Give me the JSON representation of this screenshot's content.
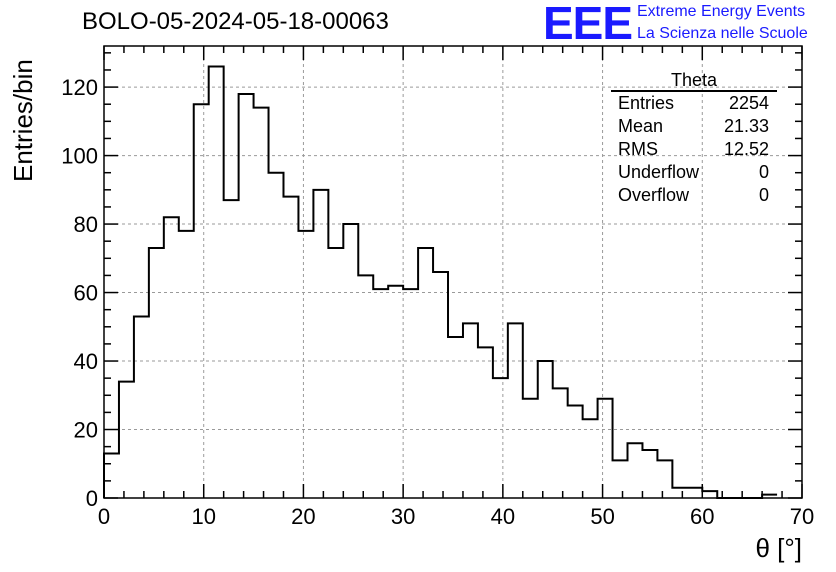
{
  "header": {
    "title": "BOLO-05-2024-05-18-00063"
  },
  "logo": {
    "mark": "EEE",
    "line1": "Extreme Energy Events",
    "line2": "La Scienza nelle Scuole",
    "color": "#1a1aff"
  },
  "stats": {
    "name": "Theta",
    "rows": [
      {
        "label": "Entries",
        "value": "2254"
      },
      {
        "label": "Mean",
        "value": "21.33"
      },
      {
        "label": "RMS",
        "value": "12.52"
      },
      {
        "label": "Underflow",
        "value": "0"
      },
      {
        "label": "Overflow",
        "value": "0"
      }
    ]
  },
  "chart_data": {
    "type": "bar",
    "xlabel": "θ [°]",
    "ylabel": "Entries/bin",
    "xlim": [
      0,
      70
    ],
    "ylim": [
      0,
      132
    ],
    "bin_width": 1.5,
    "bin_start": 0,
    "values": [
      13,
      34,
      53,
      73,
      82,
      78,
      115,
      126,
      87,
      118,
      114,
      95,
      88,
      78,
      90,
      73,
      80,
      65,
      61,
      62,
      61,
      73,
      66,
      47,
      51,
      44,
      35,
      51,
      29,
      40,
      32,
      27,
      23,
      29,
      11,
      16,
      14,
      11,
      3,
      3,
      2,
      0,
      0,
      0,
      1
    ],
    "xticks": [
      "0",
      "10",
      "20",
      "30",
      "40",
      "50",
      "60",
      "70"
    ],
    "yticks": [
      "0",
      "20",
      "40",
      "60",
      "80",
      "100",
      "120"
    ],
    "grid": true
  }
}
